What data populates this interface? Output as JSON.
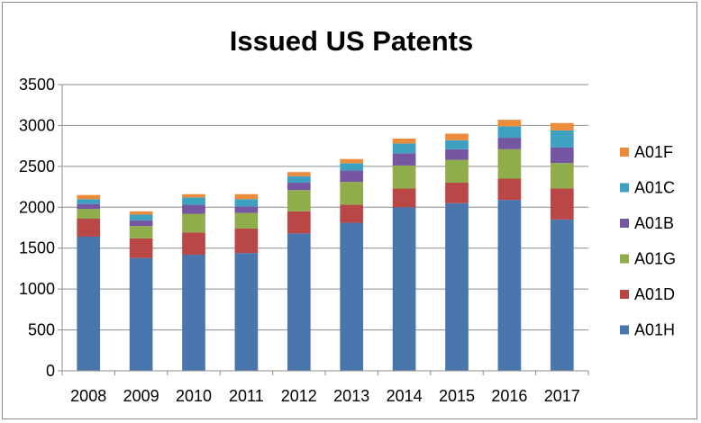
{
  "chart_data": {
    "type": "bar",
    "stacked": true,
    "title": "Issued US Patents",
    "categories": [
      "2008",
      "2009",
      "2010",
      "2011",
      "2012",
      "2013",
      "2014",
      "2015",
      "2016",
      "2017"
    ],
    "series": [
      {
        "name": "A01H",
        "color": "#4a76ae",
        "values": [
          1640,
          1380,
          1420,
          1440,
          1680,
          1810,
          2000,
          2050,
          2090,
          1850
        ]
      },
      {
        "name": "A01D",
        "color": "#b84745",
        "values": [
          220,
          240,
          270,
          300,
          270,
          220,
          230,
          250,
          260,
          380
        ]
      },
      {
        "name": "A01G",
        "color": "#8fad4a",
        "values": [
          120,
          150,
          230,
          190,
          260,
          280,
          280,
          280,
          360,
          310
        ]
      },
      {
        "name": "A01B",
        "color": "#7556a0",
        "values": [
          60,
          70,
          110,
          80,
          90,
          140,
          150,
          130,
          140,
          190
        ]
      },
      {
        "name": "A01C",
        "color": "#3fa1c0",
        "values": [
          60,
          70,
          90,
          90,
          80,
          90,
          120,
          110,
          140,
          210
        ]
      },
      {
        "name": "A01F",
        "color": "#ec8c3a",
        "values": [
          50,
          40,
          40,
          60,
          50,
          50,
          60,
          80,
          80,
          90
        ]
      }
    ],
    "xlabel": "",
    "ylabel": "",
    "ylim": [
      0,
      3500
    ],
    "yticks": [
      0,
      500,
      1000,
      1500,
      2000,
      2500,
      3000,
      3500
    ],
    "grid": true,
    "legend_position": "right",
    "legend_order": [
      "A01F",
      "A01C",
      "A01B",
      "A01G",
      "A01D",
      "A01H"
    ]
  }
}
